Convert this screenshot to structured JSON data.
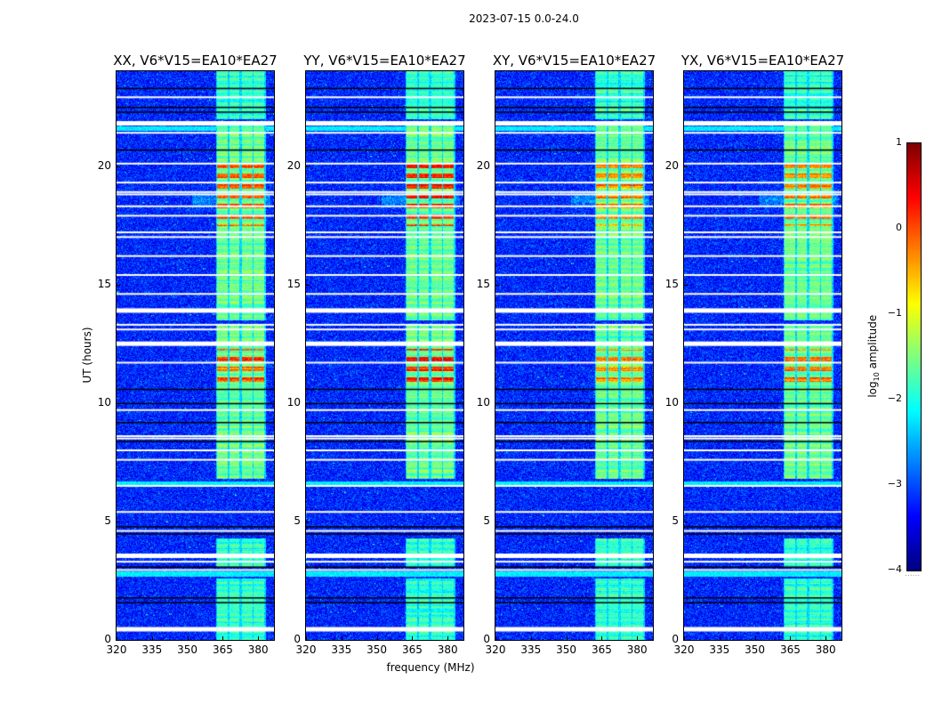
{
  "chart_data": {
    "type": "heatmap",
    "title": "2023-07-15 0.0-24.0",
    "xlabel": "frequency (MHz)",
    "ylabel": "UT (hours)",
    "xlim": [
      320,
      386.7
    ],
    "ylim": [
      0,
      24
    ],
    "xticks": [
      320,
      335,
      350,
      365,
      380
    ],
    "yticks": [
      0,
      5,
      10,
      15,
      20
    ],
    "colormap": "jet",
    "colorbar": {
      "label_main": "log",
      "label_sub": "10",
      "label_rest": " amplitude",
      "range": [
        -4,
        1
      ],
      "ticks": [
        1,
        0,
        -1,
        -2,
        -3,
        -4
      ],
      "dots": "......"
    },
    "panels": [
      {
        "title": "XX, V6*V15=EA10*EA27",
        "peak_level": 0.1
      },
      {
        "title": "YY, V6*V15=EA10*EA27",
        "peak_level": 0.4
      },
      {
        "title": "XY, V6*V15=EA10*EA27",
        "peak_level": -0.1
      },
      {
        "title": "YX, V6*V15=EA10*EA27",
        "peak_level": 0.0
      }
    ],
    "background_level": -3.2,
    "rfi_subbands_mhz": [
      [
        362.3,
        366.8
      ],
      [
        367.5,
        372.0
      ],
      [
        372.8,
        377.3
      ],
      [
        378.0,
        382.3
      ]
    ],
    "rfi_active_hours": [
      [
        0.0,
        2.6
      ],
      [
        3.1,
        4.3
      ],
      [
        6.8,
        13.3
      ],
      [
        13.5,
        21.9
      ],
      [
        22.0,
        24.0
      ]
    ],
    "rfi_level": -1.6,
    "rfi_intense_hours": [
      [
        10.7,
        12.3
      ],
      [
        17.5,
        20.1
      ]
    ],
    "flagged_hours_white": [
      0.45,
      2.95,
      3.3,
      3.55,
      4.6,
      5.4,
      6.5,
      7.6,
      8.0,
      8.5,
      8.6,
      9.7,
      11.7,
      12.5,
      13.1,
      13.3,
      13.9,
      14.6,
      15.4,
      16.2,
      17.0,
      17.2,
      17.9,
      18.3,
      18.8,
      18.9,
      19.3,
      20.1,
      21.4,
      21.8,
      22.9
    ],
    "gap_hours_black": [
      1.6,
      1.8,
      3.1,
      4.5,
      4.8,
      8.4,
      9.2,
      10.0,
      10.6,
      20.7,
      22.3,
      22.5,
      23.3
    ],
    "broadband_hours": [
      2.8,
      6.6,
      21.6
    ]
  }
}
